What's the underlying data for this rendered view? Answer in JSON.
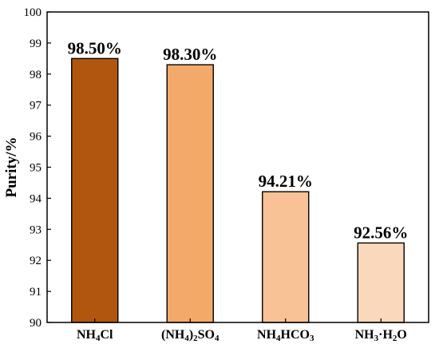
{
  "chart_data": {
    "type": "bar",
    "title": "",
    "xlabel": "",
    "ylabel": "Purity/%",
    "ylim": [
      90,
      100
    ],
    "yticks": [
      90,
      91,
      92,
      93,
      94,
      95,
      96,
      97,
      98,
      99,
      100
    ],
    "grid": false,
    "categories": [
      {
        "base": "NH",
        "parts": [
          {
            "t": "NH"
          },
          {
            "t": "4",
            "sub": true
          },
          {
            "t": "Cl"
          }
        ]
      },
      {
        "base": "(NH",
        "parts": [
          {
            "t": "(NH"
          },
          {
            "t": "4",
            "sub": true
          },
          {
            "t": ")"
          },
          {
            "t": "2",
            "sub": true
          },
          {
            "t": "SO"
          },
          {
            "t": "4",
            "sub": true
          }
        ]
      },
      {
        "base": "NH",
        "parts": [
          {
            "t": "NH"
          },
          {
            "t": "4",
            "sub": true
          },
          {
            "t": "HCO"
          },
          {
            "t": "3",
            "sub": true
          }
        ]
      },
      {
        "base": "NH",
        "parts": [
          {
            "t": "NH"
          },
          {
            "t": "3",
            "sub": true
          },
          {
            "t": "·H"
          },
          {
            "t": "2",
            "sub": true
          },
          {
            "t": "O"
          }
        ]
      }
    ],
    "values": [
      98.5,
      98.3,
      94.21,
      92.56
    ],
    "data_labels": [
      "98.50%",
      "98.30%",
      "94.21%",
      "92.56%"
    ],
    "colors": [
      "#b1560f",
      "#f3a96a",
      "#f8c196",
      "#fad8bc"
    ],
    "edge_color": "#000000"
  }
}
